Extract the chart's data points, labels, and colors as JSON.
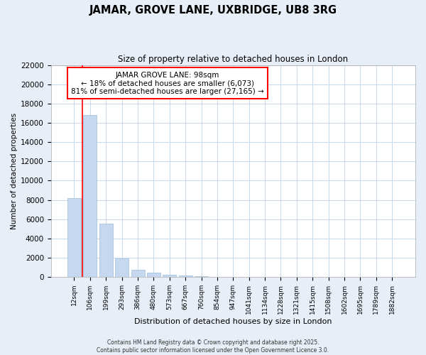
{
  "title": "JAMAR, GROVE LANE, UXBRIDGE, UB8 3RG",
  "subtitle": "Size of property relative to detached houses in London",
  "xlabel": "Distribution of detached houses by size in London",
  "ylabel": "Number of detached properties",
  "bar_color": "#c5d8f0",
  "bar_edge_color": "#9abcd8",
  "categories": [
    "12sqm",
    "106sqm",
    "199sqm",
    "293sqm",
    "386sqm",
    "480sqm",
    "573sqm",
    "667sqm",
    "760sqm",
    "854sqm",
    "947sqm",
    "1041sqm",
    "1134sqm",
    "1228sqm",
    "1321sqm",
    "1415sqm",
    "1508sqm",
    "1602sqm",
    "1695sqm",
    "1789sqm",
    "1882sqm"
  ],
  "values": [
    8200,
    16800,
    5500,
    1900,
    750,
    420,
    250,
    150,
    70,
    20,
    8,
    4,
    2,
    1,
    1,
    0,
    0,
    0,
    0,
    0,
    0
  ],
  "ylim": [
    0,
    22000
  ],
  "yticks": [
    0,
    2000,
    4000,
    6000,
    8000,
    10000,
    12000,
    14000,
    16000,
    18000,
    20000,
    22000
  ],
  "vline_x": 0.5,
  "annotation_title": "JAMAR GROVE LANE: 98sqm",
  "annotation_line1": "← 18% of detached houses are smaller (6,073)",
  "annotation_line2": "81% of semi-detached houses are larger (27,165) →",
  "footer1": "Contains HM Land Registry data © Crown copyright and database right 2025.",
  "footer2": "Contains public sector information licensed under the Open Government Licence 3.0.",
  "fig_background_color": "#e8eef7",
  "plot_background_color": "#ffffff",
  "grid_color": "#c8d8ee"
}
